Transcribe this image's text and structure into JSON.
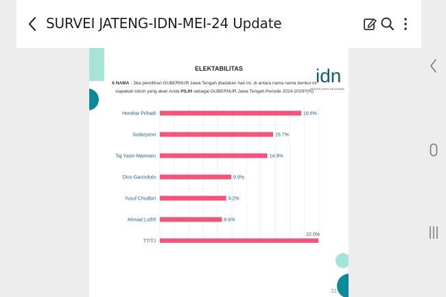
{
  "app": {
    "title": "SURVEI JATENG-IDN-MEI-24 Update"
  },
  "toolbar": {
    "back_icon": "chevron-left-icon",
    "icons": [
      "edit-icon",
      "search-icon",
      "more-vertical-icon"
    ]
  },
  "navbar": {
    "icons": [
      "nav-back-icon",
      "nav-home-icon",
      "nav-recents-icon"
    ]
  },
  "slide": {
    "title": "ELEKTABILITAS",
    "logo_text": "idn",
    "logo_subtitle": "INDEKS DATA NASIONAL",
    "question": {
      "prefix": "6 NAMA",
      "part1": " : Jika pemilihan GUBERNUR Jawa Tengah diadakan hari ini, di antara nama nama berikut ini siapakah tokoh yang akan Anda ",
      "emph": "PILIH",
      "part2": " sebagai GUBERNUR Jawa Tengah Periode 2024-2029?(%)"
    },
    "page_number": "31",
    "colors": {
      "bar": "#f0557e",
      "label": "#1e5f86",
      "teal": "#0c8a99",
      "mint": "#a6e3d8",
      "logo": "#0f5a73"
    }
  },
  "chart_data": {
    "type": "bar",
    "orientation": "horizontal",
    "categories": [
      "Hendrar Prihadi",
      "Sudaryono",
      "Taj Yasin Maimoen",
      "Dico Ganinduto",
      "Yusuf Chudlori",
      "Ahmad Luthfi",
      "TT/TJ"
    ],
    "values": [
      19.6,
      15.7,
      14.9,
      9.9,
      9.2,
      8.6,
      22.0
    ],
    "value_labels": [
      "19.6%",
      "15.7%",
      "14.9%",
      "9.9%",
      "9.2%",
      "8.6%",
      "22.0%"
    ],
    "xlim": [
      0,
      23.5
    ],
    "grid": true
  }
}
